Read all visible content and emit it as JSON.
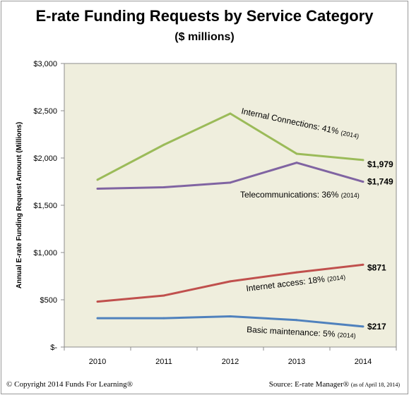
{
  "chart_data": {
    "type": "line",
    "title": "E-rate Funding Requests by Service Category",
    "subtitle": "($ millions)",
    "ylabel": "Annual E-rate Funding Request Amount (Millions)",
    "xlabel": "",
    "x": [
      "2010",
      "2011",
      "2012",
      "2013",
      "2014"
    ],
    "ylim": [
      0,
      3000
    ],
    "yticks": [
      0,
      500,
      1000,
      1500,
      2000,
      2500,
      3000
    ],
    "ytick_labels": [
      "$-",
      "$500",
      "$1,000",
      "$1,500",
      "$2,000",
      "$2,500",
      "$3,000"
    ],
    "plot_background": "#efeedd",
    "grid": false,
    "series": [
      {
        "name": "Internal Connections",
        "pct_text": "41%",
        "year_text": "(2014)",
        "color": "#9bbb59",
        "values": [
          1770,
          2140,
          2470,
          2045,
          1979
        ],
        "end_label": "$1,979"
      },
      {
        "name": "Telecommunications",
        "pct_text": "36%",
        "year_text": "(2014)",
        "color": "#8064a2",
        "values": [
          1675,
          1690,
          1740,
          1950,
          1749
        ],
        "end_label": "$1,749"
      },
      {
        "name": "Internet access",
        "pct_text": "18%",
        "year_text": "(2014)",
        "color": "#c0504d",
        "values": [
          480,
          545,
          695,
          790,
          871
        ],
        "end_label": "$871"
      },
      {
        "name": "Basic maintenance",
        "pct_text": "5%",
        "year_text": "(2014)",
        "color": "#4f81bd",
        "values": [
          305,
          305,
          325,
          285,
          217
        ],
        "end_label": "$217"
      }
    ]
  },
  "footer": {
    "copyright": "© Copyright 2014 Funds For Learning®",
    "source": "Source: E-rate Manager®",
    "source_note": "(as of April 18, 2014)"
  }
}
